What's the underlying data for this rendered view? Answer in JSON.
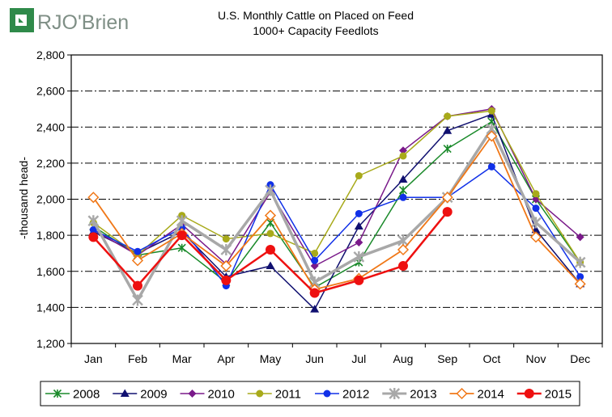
{
  "brand": {
    "name": "RJO'Brien",
    "mark_color": "#2f8a4a",
    "text_color": "#7f8f86"
  },
  "chart_data": {
    "type": "line",
    "title": "U.S. Monthly Cattle on Placed on Feed",
    "subtitle": "1000+ Capacity Feedlots",
    "xlabel": "",
    "ylabel": "-thousand head-",
    "categories": [
      "Jan",
      "Feb",
      "Mar",
      "Apr",
      "May",
      "Jun",
      "Jul",
      "Aug",
      "Sep",
      "Oct",
      "Nov",
      "Dec"
    ],
    "ylim": [
      1200,
      2800
    ],
    "yticks": [
      1200,
      1400,
      1600,
      1800,
      2000,
      2200,
      2400,
      2600,
      2800
    ],
    "ytick_labels": [
      "1,200",
      "1,400",
      "1,600",
      "1,800",
      "2,000",
      "2,200",
      "2,400",
      "2,600",
      "2,800"
    ],
    "grid": "horizontal dash-dot",
    "legend_position": "bottom",
    "plot_background": "#ffffff",
    "series": [
      {
        "name": "2008",
        "color": "#1a8a2a",
        "marker": "star",
        "width": 1.5,
        "values": [
          1850,
          1690,
          1730,
          1540,
          1870,
          1510,
          1650,
          2050,
          2280,
          2430,
          2000,
          1650
        ]
      },
      {
        "name": "2009",
        "color": "#101070",
        "marker": "triangle",
        "width": 1.5,
        "values": [
          1820,
          1700,
          1820,
          1570,
          1630,
          1390,
          1850,
          2110,
          2380,
          2470,
          1830,
          1530
        ]
      },
      {
        "name": "2010",
        "color": "#7a1a8a",
        "marker": "diamond",
        "width": 1.5,
        "values": [
          1830,
          1690,
          1860,
          1640,
          2040,
          1630,
          1760,
          2270,
          2460,
          2500,
          2000,
          1790
        ]
      },
      {
        "name": "2011",
        "color": "#a8aa1a",
        "marker": "circle",
        "width": 1.5,
        "values": [
          1870,
          1690,
          1910,
          1780,
          1810,
          1700,
          2130,
          2240,
          2460,
          2490,
          2030,
          1650
        ]
      },
      {
        "name": "2012",
        "color": "#1030e8",
        "marker": "circle",
        "width": 1.5,
        "values": [
          1830,
          1710,
          1840,
          1520,
          2080,
          1660,
          1920,
          2010,
          2010,
          2180,
          1950,
          1570
        ]
      },
      {
        "name": "2013",
        "color": "#a8a8a8",
        "marker": "xstar",
        "width": 3.5,
        "values": [
          1880,
          1440,
          1880,
          1720,
          2050,
          1540,
          1680,
          1770,
          2010,
          2390,
          1870,
          1650
        ]
      },
      {
        "name": "2014",
        "color": "#f07818",
        "marker": "open-diamond",
        "width": 1.8,
        "values": [
          2010,
          1660,
          1810,
          1630,
          1910,
          1500,
          1560,
          1720,
          2010,
          2350,
          1790,
          1530
        ]
      },
      {
        "name": "2015",
        "color": "#ee1010",
        "marker": "big-circle",
        "width": 2.5,
        "values": [
          1790,
          1520,
          1800,
          1550,
          1720,
          1480,
          1550,
          1630,
          1930,
          null,
          null,
          null
        ]
      }
    ]
  }
}
